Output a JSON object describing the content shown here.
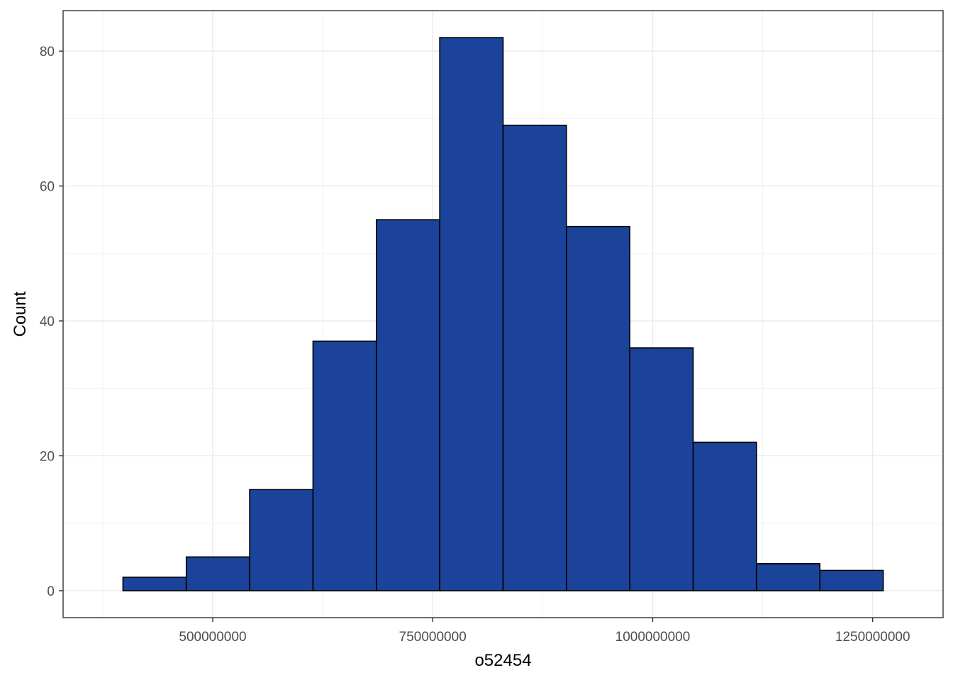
{
  "chart_data": {
    "type": "bar",
    "title": "",
    "xlabel": "o52454",
    "ylabel": "Count",
    "bin_edges": [
      398000000,
      470000000,
      542000000,
      614000000,
      686000000,
      758000000,
      830000000,
      902000000,
      974000000,
      1046000000,
      1118000000,
      1190000000,
      1262000000
    ],
    "values": [
      2,
      5,
      15,
      37,
      55,
      82,
      69,
      54,
      36,
      22,
      4,
      3
    ],
    "xlim": [
      330000000,
      1330000000
    ],
    "ylim": [
      -4,
      86
    ],
    "x_ticks": [
      500000000,
      750000000,
      1000000000,
      1250000000
    ],
    "x_tick_labels": [
      "500000000",
      "750000000",
      "1000000000",
      "1250000000"
    ],
    "y_ticks": [
      0,
      20,
      40,
      60,
      80
    ],
    "y_tick_labels": [
      "0",
      "20",
      "40",
      "60",
      "80"
    ],
    "grid": true,
    "bar_fill": "#1a4399",
    "bar_stroke": "#000000"
  }
}
